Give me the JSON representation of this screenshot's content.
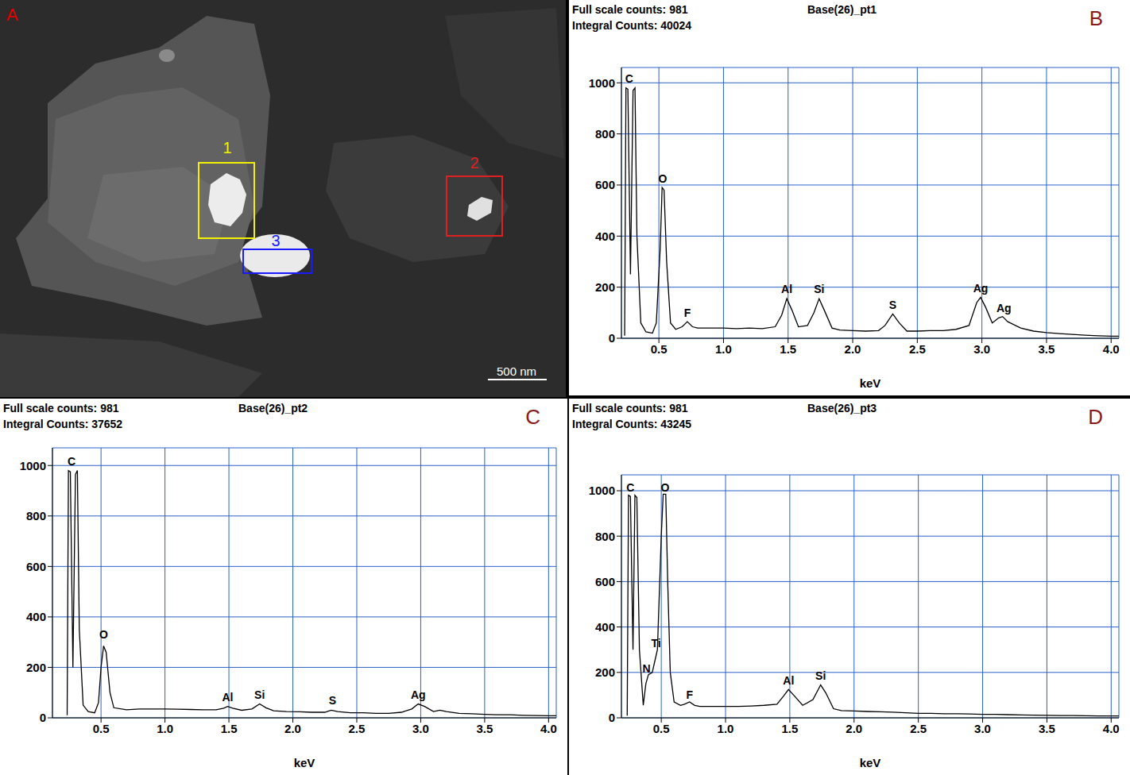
{
  "image_panel": {
    "panel_label": "A",
    "regions": [
      {
        "label": "1",
        "color": "#f2f200"
      },
      {
        "label": "2",
        "color": "#e02020"
      },
      {
        "label": "3",
        "color": "#1a1aff"
      }
    ],
    "scale_bar": "500 nm"
  },
  "chart_data": [
    {
      "type": "line",
      "panel_label": "B",
      "title": "Base(26)_pt1",
      "header_lines": [
        "Full scale counts: 981",
        "Integral Counts: 40024"
      ],
      "x_label": "keV",
      "color": "#000000",
      "grid": true,
      "xlim": [
        0.21,
        4.06
      ],
      "ylim": [
        0,
        1060
      ],
      "xticks": [
        0.5,
        {
          "value": 1,
          "label": "1.0"
        },
        1.5,
        {
          "value": 2,
          "label": "2.0"
        },
        2.5,
        {
          "value": 3,
          "label": "3.0"
        },
        3.5,
        {
          "value": 4,
          "label": "4.0"
        }
      ],
      "yticks": [
        0,
        200,
        400,
        600,
        800,
        1000
      ],
      "x": [
        0.235,
        0.245,
        0.26,
        0.28,
        0.3,
        0.315,
        0.33,
        0.36,
        0.4,
        0.45,
        0.48,
        0.51,
        0.525,
        0.54,
        0.56,
        0.59,
        0.63,
        0.68,
        0.72,
        0.76,
        0.8,
        0.9,
        1.0,
        1.1,
        1.2,
        1.3,
        1.4,
        1.45,
        1.49,
        1.53,
        1.58,
        1.65,
        1.7,
        1.74,
        1.78,
        1.84,
        1.9,
        2.0,
        2.1,
        2.2,
        2.25,
        2.31,
        2.36,
        2.42,
        2.5,
        2.6,
        2.7,
        2.8,
        2.9,
        2.96,
        2.99,
        3.03,
        3.08,
        3.13,
        3.16,
        3.2,
        3.3,
        3.4,
        3.5,
        3.6,
        3.7,
        3.8,
        3.9,
        4.0,
        4.06
      ],
      "values": [
        10,
        980,
        975,
        250,
        970,
        980,
        400,
        60,
        25,
        20,
        60,
        350,
        590,
        580,
        300,
        60,
        35,
        45,
        65,
        45,
        40,
        40,
        40,
        38,
        40,
        38,
        45,
        90,
        155,
        110,
        45,
        50,
        100,
        155,
        110,
        40,
        32,
        30,
        28,
        30,
        50,
        95,
        60,
        28,
        28,
        30,
        30,
        35,
        50,
        140,
        160,
        120,
        60,
        80,
        85,
        65,
        40,
        28,
        22,
        18,
        15,
        12,
        10,
        8,
        8
      ],
      "annotations": [
        {
          "text": "C",
          "x": 0.27,
          "y": 1015
        },
        {
          "text": "O",
          "x": 0.53,
          "y": 625
        },
        {
          "text": "F",
          "x": 0.72,
          "y": 100
        },
        {
          "text": "Al",
          "x": 1.49,
          "y": 192
        },
        {
          "text": "Si",
          "x": 1.74,
          "y": 192
        },
        {
          "text": "S",
          "x": 2.31,
          "y": 132
        },
        {
          "text": "Ag",
          "x": 2.99,
          "y": 195
        },
        {
          "text": "Ag",
          "x": 3.17,
          "y": 118
        }
      ]
    },
    {
      "type": "line",
      "panel_label": "C",
      "title": "Base(26)_pt2",
      "header_lines": [
        "Full scale counts: 981",
        "Integral Counts: 37652"
      ],
      "x_label": "keV",
      "color": "#000000",
      "grid": true,
      "xlim": [
        0.12,
        4.06
      ],
      "ylim": [
        0,
        1070
      ],
      "xticks": [
        0.5,
        {
          "value": 1,
          "label": "1.0"
        },
        1.5,
        {
          "value": 2,
          "label": "2.0"
        },
        2.5,
        {
          "value": 3,
          "label": "3.0"
        },
        3.5,
        {
          "value": 4,
          "label": "4.0"
        }
      ],
      "yticks": [
        0,
        200,
        400,
        600,
        800,
        1000
      ],
      "x": [
        0.235,
        0.245,
        0.26,
        0.28,
        0.3,
        0.315,
        0.33,
        0.36,
        0.4,
        0.45,
        0.48,
        0.5,
        0.52,
        0.54,
        0.57,
        0.6,
        0.7,
        0.8,
        0.9,
        1.0,
        1.1,
        1.2,
        1.3,
        1.4,
        1.46,
        1.49,
        1.53,
        1.6,
        1.68,
        1.74,
        1.79,
        1.85,
        1.95,
        2.05,
        2.15,
        2.25,
        2.3,
        2.35,
        2.45,
        2.55,
        2.65,
        2.75,
        2.85,
        2.93,
        2.98,
        3.03,
        3.1,
        3.15,
        3.2,
        3.3,
        3.4,
        3.5,
        3.6,
        3.7,
        3.8,
        3.9,
        4.0,
        4.06
      ],
      "values": [
        10,
        980,
        975,
        200,
        965,
        980,
        350,
        50,
        25,
        20,
        60,
        200,
        285,
        260,
        100,
        40,
        32,
        35,
        35,
        35,
        34,
        33,
        32,
        32,
        38,
        45,
        38,
        30,
        35,
        55,
        40,
        28,
        25,
        24,
        22,
        22,
        30,
        25,
        20,
        20,
        18,
        18,
        22,
        35,
        55,
        45,
        25,
        30,
        25,
        18,
        16,
        14,
        12,
        12,
        10,
        9,
        8,
        8
      ],
      "annotations": [
        {
          "text": "C",
          "x": 0.27,
          "y": 1015
        },
        {
          "text": "O",
          "x": 0.52,
          "y": 330
        },
        {
          "text": "Al",
          "x": 1.49,
          "y": 82
        },
        {
          "text": "Si",
          "x": 1.74,
          "y": 92
        },
        {
          "text": "S",
          "x": 2.31,
          "y": 68
        },
        {
          "text": "Ag",
          "x": 2.98,
          "y": 92
        }
      ]
    },
    {
      "type": "line",
      "panel_label": "D",
      "title": "Base(26)_pt3",
      "header_lines": [
        "Full scale counts: 981",
        "Integral Counts: 43245"
      ],
      "x_label": "keV",
      "color": "#000000",
      "grid": true,
      "xlim": [
        0.19,
        4.06
      ],
      "ylim": [
        0,
        1070
      ],
      "xticks": [
        0.5,
        {
          "value": 1,
          "label": "1.0"
        },
        1.5,
        {
          "value": 2,
          "label": "2.0"
        },
        2.5,
        {
          "value": 3,
          "label": "3.0"
        },
        3.5,
        {
          "value": 4,
          "label": "4.0"
        }
      ],
      "yticks": [
        0,
        200,
        400,
        600,
        800,
        1000
      ],
      "x": [
        0.235,
        0.245,
        0.26,
        0.28,
        0.295,
        0.31,
        0.33,
        0.36,
        0.38,
        0.4,
        0.43,
        0.45,
        0.47,
        0.5,
        0.515,
        0.535,
        0.55,
        0.57,
        0.6,
        0.65,
        0.68,
        0.72,
        0.76,
        0.8,
        0.9,
        1.0,
        1.1,
        1.2,
        1.3,
        1.4,
        1.45,
        1.49,
        1.53,
        1.6,
        1.68,
        1.74,
        1.78,
        1.84,
        1.9,
        2.0,
        2.1,
        2.2,
        2.3,
        2.4,
        2.5,
        2.6,
        2.7,
        2.8,
        2.9,
        3.0,
        3.1,
        3.2,
        3.3,
        3.4,
        3.5,
        3.6,
        3.7,
        3.8,
        3.9,
        4.0,
        4.06
      ],
      "values": [
        10,
        980,
        975,
        300,
        980,
        970,
        300,
        55,
        150,
        190,
        200,
        250,
        300,
        800,
        985,
        985,
        600,
        200,
        70,
        55,
        60,
        70,
        55,
        50,
        50,
        50,
        50,
        52,
        55,
        60,
        95,
        125,
        100,
        55,
        80,
        145,
        110,
        40,
        32,
        30,
        28,
        27,
        25,
        22,
        20,
        20,
        18,
        18,
        17,
        15,
        15,
        14,
        13,
        12,
        11,
        10,
        10,
        9,
        8,
        8,
        8
      ],
      "annotations": [
        {
          "text": "C",
          "x": 0.26,
          "y": 1015
        },
        {
          "text": "O",
          "x": 0.53,
          "y": 1015
        },
        {
          "text": "N",
          "x": 0.385,
          "y": 215
        },
        {
          "text": "Ti",
          "x": 0.46,
          "y": 330
        },
        {
          "text": "F",
          "x": 0.72,
          "y": 100
        },
        {
          "text": "Al",
          "x": 1.49,
          "y": 165
        },
        {
          "text": "Si",
          "x": 1.74,
          "y": 185
        }
      ]
    }
  ]
}
